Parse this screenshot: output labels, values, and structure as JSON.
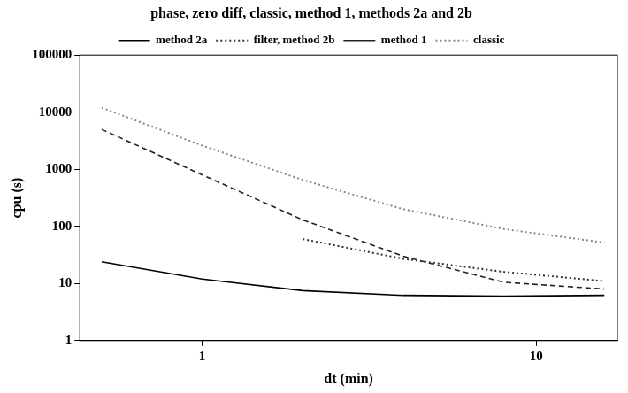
{
  "chart_data": {
    "type": "line",
    "title": "phase, zero diff, classic, method 1, methods 2a and 2b",
    "x_label": "dt (min)",
    "y_label": "cpu (s)",
    "log": true,
    "grid": false,
    "legend": "top",
    "xlim": [
      0.43,
      17.5
    ],
    "xticks": [
      1,
      10
    ],
    "ylim": [
      1,
      100000
    ],
    "yticks": [
      1,
      10,
      100,
      1000,
      10000,
      100000
    ],
    "series": [
      {
        "name": "method 2a",
        "color": "#000000",
        "line_style": "solid",
        "x": [
          0.5,
          1,
          2,
          4,
          8,
          16
        ],
        "values": [
          24,
          12,
          7.5,
          6.2,
          6,
          6.2
        ]
      },
      {
        "name": "filter, method 2b",
        "color": "#333333",
        "line_style": "dotted",
        "x": [
          2,
          4,
          8,
          16
        ],
        "values": [
          60,
          27,
          16,
          11
        ]
      },
      {
        "name": "method 1",
        "color": "#222222",
        "line_style": "dashed",
        "x": [
          0.5,
          1,
          2,
          4,
          8,
          16
        ],
        "values": [
          5000,
          800,
          130,
          30,
          10.5,
          8
        ]
      },
      {
        "name": "classic",
        "color": "#888888",
        "line_style": "dotted",
        "x": [
          0.5,
          1,
          2,
          4,
          8,
          16
        ],
        "values": [
          12000,
          2600,
          650,
          200,
          90,
          52
        ]
      }
    ]
  }
}
